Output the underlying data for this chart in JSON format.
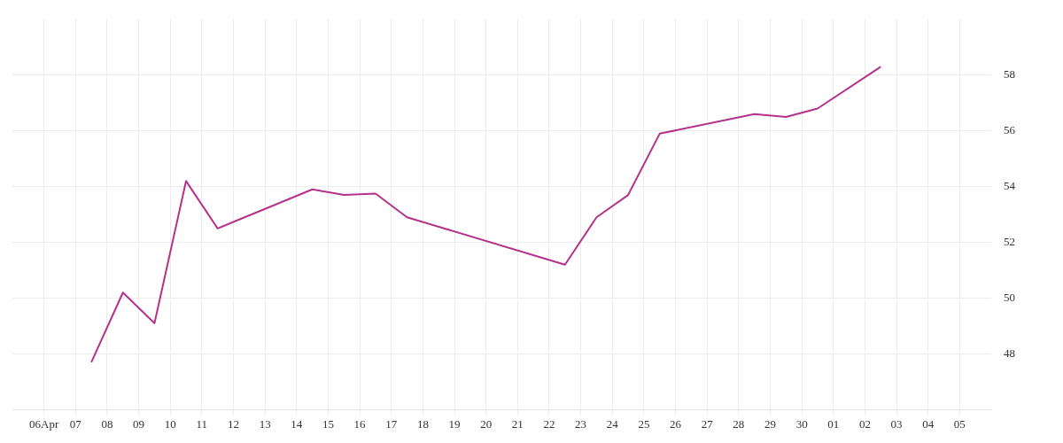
{
  "chart_data": {
    "type": "line",
    "x": [
      "--04-07T12:00",
      "--04-08T12:00",
      "--04-09T12:00",
      "--04-10T12:00",
      "--04-11T12:00",
      "--04-14T12:00",
      "--04-15T12:00",
      "--04-16T12:00",
      "--04-17T12:00",
      "--04-22T12:00",
      "--04-23T12:00",
      "--04-24T12:00",
      "--04-25T12:00",
      "--04-28T12:00",
      "--04-29T12:00",
      "--04-30T12:00",
      "--05-02T12:00"
    ],
    "series": [
      {
        "color": "#b5318b",
        "values": [
          47.7,
          50.2,
          49.1,
          54.2,
          52.5,
          53.9,
          53.7,
          53.75,
          52.9,
          51.2,
          52.9,
          53.7,
          55.9,
          56.6,
          56.5,
          56.8,
          58.3
        ]
      }
    ],
    "xlim": [
      "--04-05",
      "--05-06"
    ],
    "xticks": [
      {
        "value": "--04-06",
        "label": "06Apr"
      },
      {
        "value": "--04-07",
        "label": "07"
      },
      {
        "value": "--04-08",
        "label": "08"
      },
      {
        "value": "--04-09",
        "label": "09"
      },
      {
        "value": "--04-10",
        "label": "10"
      },
      {
        "value": "--04-11",
        "label": "11"
      },
      {
        "value": "--04-12",
        "label": "12"
      },
      {
        "value": "--04-13",
        "label": "13"
      },
      {
        "value": "--04-14",
        "label": "14"
      },
      {
        "value": "--04-15",
        "label": "15"
      },
      {
        "value": "--04-16",
        "label": "16"
      },
      {
        "value": "--04-17",
        "label": "17"
      },
      {
        "value": "--04-18",
        "label": "18"
      },
      {
        "value": "--04-19",
        "label": "19"
      },
      {
        "value": "--04-20",
        "label": "20"
      },
      {
        "value": "--04-21",
        "label": "21"
      },
      {
        "value": "--04-22",
        "label": "22"
      },
      {
        "value": "--04-23",
        "label": "23"
      },
      {
        "value": "--04-24",
        "label": "24"
      },
      {
        "value": "--04-25",
        "label": "25"
      },
      {
        "value": "--04-26",
        "label": "26"
      },
      {
        "value": "--04-27",
        "label": "27"
      },
      {
        "value": "--04-28",
        "label": "28"
      },
      {
        "value": "--04-29",
        "label": "29"
      },
      {
        "value": "--04-30",
        "label": "30"
      },
      {
        "value": "--05-01",
        "label": "01"
      },
      {
        "value": "--05-02",
        "label": "02"
      },
      {
        "value": "--05-03",
        "label": "03"
      },
      {
        "value": "--05-04",
        "label": "04"
      },
      {
        "value": "--05-05",
        "label": "05"
      }
    ],
    "ylim": [
      46,
      60
    ],
    "yticks": [
      48,
      50,
      52,
      54,
      56,
      58
    ],
    "grid": true,
    "legend": false,
    "marker": "none",
    "line_style": "solid"
  }
}
